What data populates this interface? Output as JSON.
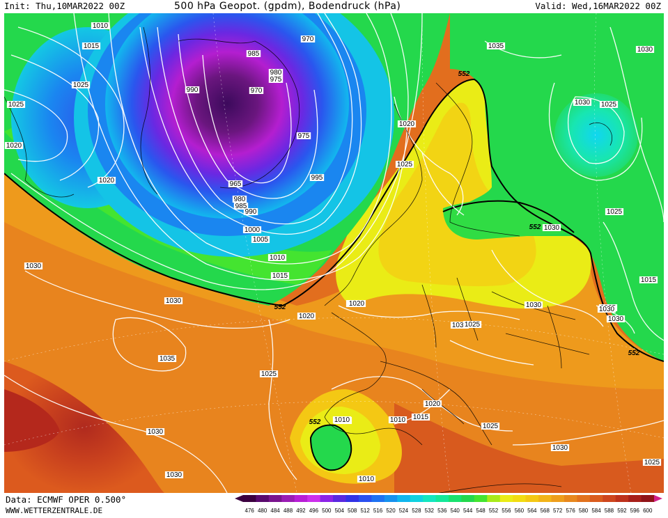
{
  "header": {
    "init": "Init: Thu,10MAR2022 00Z",
    "title": "500 hPa Geopot. (gpdm), Bodendruck (hPa)",
    "valid": "Valid: Wed,16MAR2022 00Z"
  },
  "footer": {
    "data_source": "Data: ECMWF OPER 0.500°",
    "website": "WWW.WETTERZENTRALE.DE"
  },
  "legend": {
    "values": [
      "476",
      "480",
      "484",
      "488",
      "492",
      "496",
      "500",
      "504",
      "508",
      "512",
      "516",
      "520",
      "524",
      "528",
      "532",
      "536",
      "540",
      "544",
      "548",
      "552",
      "556",
      "560",
      "564",
      "568",
      "572",
      "576",
      "580",
      "584",
      "588",
      "592",
      "596",
      "600"
    ],
    "colors": [
      "#3c0040",
      "#5a0a6e",
      "#7a148e",
      "#9a1cb4",
      "#b81ed6",
      "#cc30ec",
      "#8c24e8",
      "#5a28e0",
      "#3232e6",
      "#2a50f0",
      "#1e72f2",
      "#1692ee",
      "#10b6ee",
      "#10d2e0",
      "#14e6c0",
      "#14e89a",
      "#18e26e",
      "#24d84c",
      "#44e430",
      "#a8ea1a",
      "#eaec16",
      "#f2dc12",
      "#f4c814",
      "#f2b418",
      "#ee9e1c",
      "#e8881e",
      "#e2721e",
      "#da5c1e",
      "#ce461e",
      "#be321c",
      "#a8201a",
      "#901418"
    ]
  },
  "map": {
    "geopotential_contour_label": "552",
    "pressure_labels": [
      "1010",
      "1015",
      "1025",
      "1025",
      "1020",
      "1020",
      "990",
      "985",
      "980",
      "975",
      "970",
      "970",
      "975",
      "965",
      "980",
      "985",
      "990",
      "995",
      "1000",
      "1005",
      "1010",
      "1015",
      "1020",
      "1025",
      "1035",
      "1030",
      "1030",
      "1025",
      "1025",
      "1030",
      "1015",
      "1030",
      "1030",
      "1030",
      "1025",
      "1035",
      "1030",
      "1030",
      "1020",
      "1020",
      "1030",
      "1030",
      "1025",
      "1020",
      "1020",
      "1025",
      "1010",
      "1015",
      "1010",
      "1010",
      "1025",
      "1030",
      "1030",
      "1025",
      "1010"
    ],
    "geopotential_labels": [
      "552",
      "552",
      "552",
      "552",
      "552",
      "552"
    ]
  }
}
